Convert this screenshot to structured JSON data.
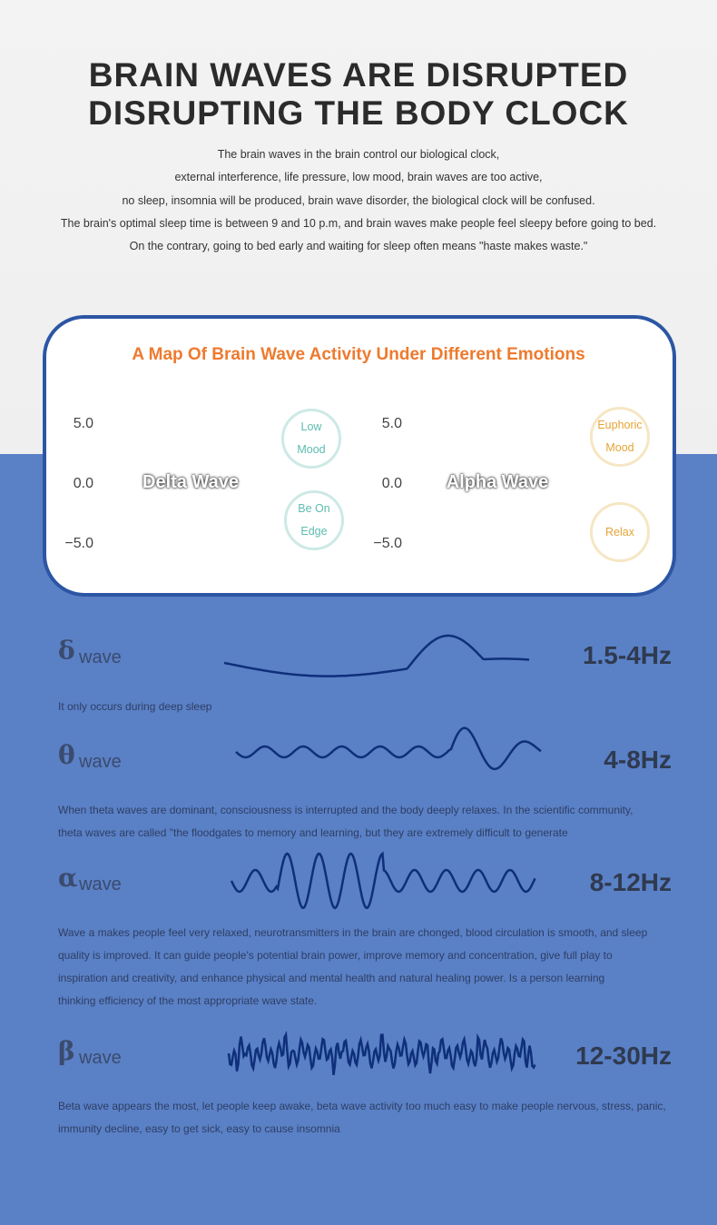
{
  "header": {
    "title": [
      "BRAIN WAVES ARE DISRUPTED",
      "DISRUPTING THE BODY CLOCK"
    ],
    "paragraph": [
      "The brain waves in the brain control our biological clock,",
      "external interference, life pressure, low mood, brain waves are too active,",
      "no sleep, insomnia will be produced, brain wave disorder, the biological clock will be confused.",
      "The brain's optimal sleep time is between 9 and 10 p.m, and brain waves make people feel sleepy before going to bed.",
      "On the contrary, going to bed early and waiting for sleep often means \"haste makes waste.\""
    ]
  },
  "map": {
    "title": "A Map Of Brain Wave Activity Under Different Emotions",
    "left": {
      "scale": [
        "5.0",
        "0.0",
        "−5.0"
      ],
      "label": "Delta Wave",
      "bubbles": [
        [
          "Low",
          "Mood"
        ],
        [
          "Be On",
          "Edge"
        ]
      ]
    },
    "right": {
      "scale": [
        "5.0",
        "0.0",
        "−5.0"
      ],
      "label": "Alpha Wave",
      "bubbles": [
        [
          "Euphoric",
          "Mood"
        ],
        [
          "Relax"
        ]
      ]
    }
  },
  "waves": [
    {
      "symbol": "δ",
      "word": "wave",
      "frequency": "1.5-4Hz",
      "description": [
        "It only occurs during deep sleep"
      ]
    },
    {
      "symbol": "θ",
      "word": "wave",
      "frequency": "4-8Hz",
      "description": [
        "When theta waves are dominant, consciousness is interrupted and the body deeply relaxes. In the scientific community,",
        "theta waves are called \"the floodgates to memory and learning, but they are extremely difficult to generate"
      ]
    },
    {
      "symbol": "α",
      "word": "wave",
      "frequency": "8-12Hz",
      "description": [
        "Wave a makes people feel very relaxed, neurotransmitters in the brain are chonged, blood circulation is smooth, and sleep",
        "quality is improved. It can guide people's potential brain power, improve memory and concentration, give full play to",
        "inspiration and creativity, and enhance physical and mental health and natural healing power. Is a person learning",
        "thinking efficiency of the most appropriate wave state."
      ]
    },
    {
      "symbol": "β",
      "word": "wave",
      "frequency": "12-30Hz",
      "description": [
        "Beta wave appears the most, let people keep awake, beta wave activity too much easy to make people nervous, stress, panic,",
        "immunity decline, easy to get sick, easy to cause insomnia"
      ]
    }
  ]
}
